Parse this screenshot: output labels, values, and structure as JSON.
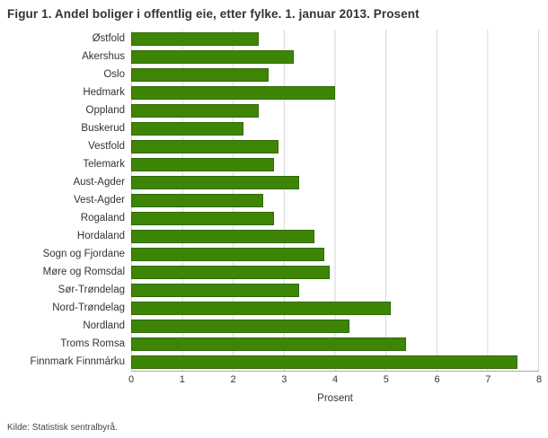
{
  "source": "Kilde: Statistisk sentralbyrå.",
  "chart_data": {
    "type": "bar",
    "orientation": "horizontal",
    "title": "Figur 1. Andel boliger i offentlig eie, etter fylke. 1. januar 2013. Prosent",
    "xlabel": "Prosent",
    "ylabel": "",
    "xlim": [
      0,
      8
    ],
    "xticks": [
      0,
      1,
      2,
      3,
      4,
      5,
      6,
      7,
      8
    ],
    "grid": "vertical",
    "legend": "none",
    "colors": {
      "bar": "#3f8505",
      "bar_edge": "#2f6a04",
      "grid": "#d6d6d6",
      "axis": "#aaaaaa"
    },
    "categories": [
      "Østfold",
      "Akershus",
      "Oslo",
      "Hedmark",
      "Oppland",
      "Buskerud",
      "Vestfold",
      "Telemark",
      "Aust-Agder",
      "Vest-Agder",
      "Rogaland",
      "Hordaland",
      "Sogn og Fjordane",
      "Møre og Romsdal",
      "Sør-Trøndelag",
      "Nord-Trøndelag",
      "Nordland",
      "Troms Romsa",
      "Finnmark Finnmárku"
    ],
    "values": [
      2.5,
      3.2,
      2.7,
      4.0,
      2.5,
      2.2,
      2.9,
      2.8,
      3.3,
      2.6,
      2.8,
      3.6,
      3.8,
      3.9,
      3.3,
      5.1,
      4.3,
      5.4,
      7.6
    ]
  }
}
